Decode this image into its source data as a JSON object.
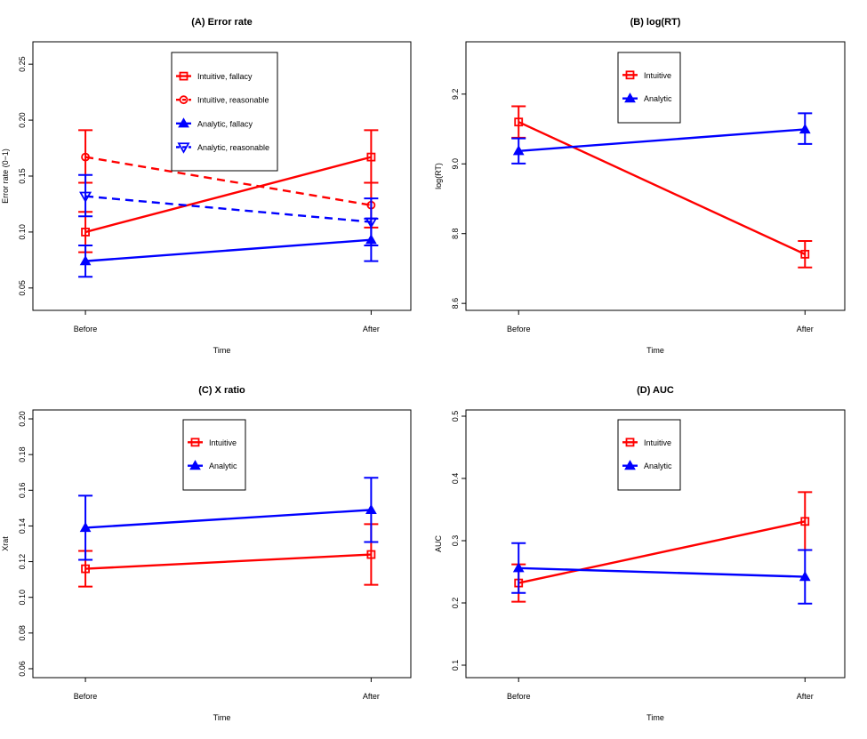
{
  "chart_data": [
    {
      "type": "line",
      "title": "(A) Error rate",
      "xlabel": "Time",
      "ylabel": "Error rate (0−1)",
      "categories": [
        "Before",
        "After"
      ],
      "ylim": [
        0.03,
        0.27
      ],
      "yticks": [
        0.05,
        0.1,
        0.15,
        0.2,
        0.25
      ],
      "ytick_labels": [
        "0.05",
        "0.10",
        "0.15",
        "0.20",
        "0.25"
      ],
      "legend_position": "top-center",
      "series": [
        {
          "name": "Intuitive, fallacy",
          "color": "#ff0000",
          "line": "solid",
          "marker": "square",
          "values": [
            0.1,
            0.167
          ],
          "err_low": [
            0.082,
            0.144
          ],
          "err_high": [
            0.118,
            0.191
          ]
        },
        {
          "name": "Intuitive, reasonable",
          "color": "#ff0000",
          "line": "dashed",
          "marker": "circle",
          "values": [
            0.167,
            0.124
          ],
          "err_low": [
            0.144,
            0.104
          ],
          "err_high": [
            0.191,
            0.144
          ]
        },
        {
          "name": "Analytic, fallacy",
          "color": "#0000ff",
          "line": "solid",
          "marker": "triangle-up",
          "values": [
            0.074,
            0.093
          ],
          "err_low": [
            0.06,
            0.074
          ],
          "err_high": [
            0.088,
            0.112
          ]
        },
        {
          "name": "Analytic, reasonable",
          "color": "#0000ff",
          "line": "dashed",
          "marker": "triangle-down",
          "values": [
            0.132,
            0.109
          ],
          "err_low": [
            0.114,
            0.088
          ],
          "err_high": [
            0.151,
            0.13
          ]
        }
      ]
    },
    {
      "type": "line",
      "title": "(B) log(RT)",
      "xlabel": "Time",
      "ylabel": "log(RT)",
      "categories": [
        "Before",
        "After"
      ],
      "ylim": [
        8.58,
        9.35
      ],
      "yticks": [
        8.6,
        8.8,
        9.0,
        9.2
      ],
      "ytick_labels": [
        "8.6",
        "8.8",
        "9.0",
        "9.2"
      ],
      "legend_position": "top-center",
      "series": [
        {
          "name": "Intuitive",
          "color": "#ff0000",
          "line": "solid",
          "marker": "square",
          "values": [
            9.12,
            8.741
          ],
          "err_low": [
            9.075,
            8.703
          ],
          "err_high": [
            9.165,
            8.779
          ]
        },
        {
          "name": "Analytic",
          "color": "#0000ff",
          "line": "solid",
          "marker": "triangle-up",
          "values": [
            9.037,
            9.099
          ],
          "err_low": [
            9.001,
            9.057
          ],
          "err_high": [
            9.073,
            9.145
          ]
        }
      ]
    },
    {
      "type": "line",
      "title": "(C) X ratio",
      "xlabel": "Time",
      "ylabel": "Xrat",
      "categories": [
        "Before",
        "After"
      ],
      "ylim": [
        0.055,
        0.205
      ],
      "yticks": [
        0.06,
        0.08,
        0.1,
        0.12,
        0.14,
        0.16,
        0.18,
        0.2
      ],
      "ytick_labels": [
        "0.06",
        "0.08",
        "0.10",
        "0.12",
        "0.14",
        "0.16",
        "0.18",
        "0.20"
      ],
      "legend_position": "top-center",
      "series": [
        {
          "name": "Intuitive",
          "color": "#ff0000",
          "line": "solid",
          "marker": "square",
          "values": [
            0.116,
            0.124
          ],
          "err_low": [
            0.106,
            0.107
          ],
          "err_high": [
            0.126,
            0.141
          ]
        },
        {
          "name": "Analytic",
          "color": "#0000ff",
          "line": "solid",
          "marker": "triangle-up",
          "values": [
            0.139,
            0.149
          ],
          "err_low": [
            0.121,
            0.131
          ],
          "err_high": [
            0.157,
            0.167
          ]
        }
      ]
    },
    {
      "type": "line",
      "title": "(D) AUC",
      "xlabel": "Time",
      "ylabel": "AUC",
      "categories": [
        "Before",
        "After"
      ],
      "ylim": [
        0.08,
        0.51
      ],
      "yticks": [
        0.1,
        0.2,
        0.3,
        0.4,
        0.5
      ],
      "ytick_labels": [
        "0.1",
        "0.2",
        "0.3",
        "0.4",
        "0.5"
      ],
      "legend_position": "top-center",
      "series": [
        {
          "name": "Intuitive",
          "color": "#ff0000",
          "line": "solid",
          "marker": "square",
          "values": [
            0.232,
            0.331
          ],
          "err_low": [
            0.202,
            0.285
          ],
          "err_high": [
            0.262,
            0.378
          ]
        },
        {
          "name": "Analytic",
          "color": "#0000ff",
          "line": "solid",
          "marker": "triangle-up",
          "values": [
            0.256,
            0.242
          ],
          "err_low": [
            0.216,
            0.199
          ],
          "err_high": [
            0.296,
            0.285
          ]
        }
      ]
    }
  ]
}
